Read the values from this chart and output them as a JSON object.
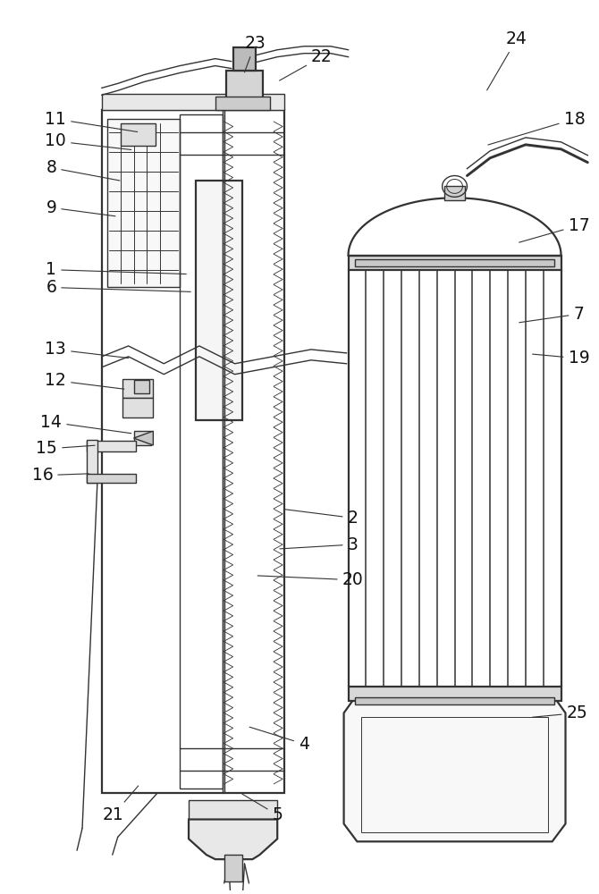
{
  "bg_color": "#ffffff",
  "lc": "#333333",
  "lw": 1.0,
  "lw2": 1.6,
  "fig_width": 6.7,
  "fig_height": 10.0
}
